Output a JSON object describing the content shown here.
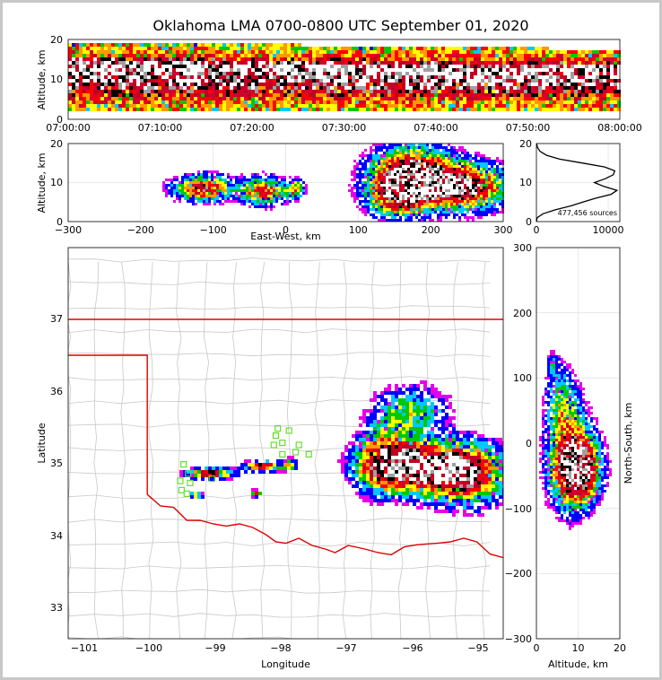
{
  "figure": {
    "title": "Oklahoma LMA 0700-0800 UTC September 01, 2020"
  },
  "colormap": [
    "#ffffff",
    "#e600e6",
    "#0000ff",
    "#00c8ff",
    "#00c800",
    "#ffff00",
    "#ff9900",
    "#ff0000",
    "#d00030",
    "#c00020",
    "#000000",
    "#a0a0a0",
    "#ffffff"
  ],
  "chart_data": [
    {
      "name": "time-altitude",
      "type": "heatmap",
      "ylabel": "Altitude, km",
      "ylim": [
        0,
        20
      ],
      "y_ticks": [
        "0",
        "10",
        "20"
      ],
      "x_ticks": [
        "07:00:00",
        "07:10:00",
        "07:20:00",
        "07:30:00",
        "07:40:00",
        "07:50:00",
        "08:00:00"
      ],
      "xlim": [
        "07:00:00",
        "08:00:00"
      ]
    },
    {
      "name": "east-west-altitude",
      "type": "heatmap",
      "xlabel": "East-West, km",
      "ylabel": "Altitude, km",
      "xlim": [
        -300,
        300
      ],
      "ylim": [
        0,
        20
      ],
      "x_ticks": [
        "−300",
        "−200",
        "−100",
        "0",
        "100",
        "200",
        "300"
      ],
      "y_ticks": [
        "0",
        "10",
        "20"
      ]
    },
    {
      "name": "altitude-histogram",
      "type": "line",
      "annotation": "477,456 sources",
      "xlim": [
        0,
        11500
      ],
      "ylim": [
        0,
        20
      ],
      "x_ticks": [
        "0",
        "10000"
      ],
      "y_ticks": [
        "0",
        "10",
        "20"
      ],
      "x": [
        0,
        100,
        900,
        2600,
        4700,
        6400,
        8200,
        10300,
        11100,
        9300,
        8000,
        9500,
        10600,
        10800,
        9400,
        6400,
        3200,
        1400,
        500,
        150,
        20
      ],
      "y": [
        0,
        1,
        2,
        3,
        4,
        5,
        6,
        7,
        8,
        9,
        10,
        11,
        12,
        13,
        14,
        15,
        16,
        17,
        18,
        19,
        20
      ]
    },
    {
      "name": "plan-view-map",
      "type": "heatmap",
      "xlabel": "Longitude",
      "ylabel": "Latitude",
      "xlim": [
        -101.2,
        -94.6
      ],
      "ylim": [
        32.55,
        38.0
      ],
      "x_ticks": [
        "−101",
        "−100",
        "−99",
        "−98",
        "−97",
        "−96",
        "−95"
      ],
      "y_ticks": [
        "33",
        "34",
        "35",
        "36",
        "37"
      ],
      "stations": [
        [
          -99.45,
          34.98
        ],
        [
          -99.38,
          34.85
        ],
        [
          -99.5,
          34.75
        ],
        [
          -99.35,
          34.72
        ],
        [
          -99.48,
          34.62
        ],
        [
          -99.4,
          34.57
        ],
        [
          -99.02,
          34.78
        ],
        [
          -98.02,
          35.48
        ],
        [
          -98.05,
          35.38
        ],
        [
          -97.85,
          35.45
        ],
        [
          -98.08,
          35.25
        ],
        [
          -97.95,
          35.28
        ],
        [
          -97.7,
          35.25
        ],
        [
          -97.75,
          35.15
        ],
        [
          -97.95,
          35.12
        ],
        [
          -97.55,
          35.12
        ]
      ],
      "storms": [
        {
          "lon": -95.95,
          "lat": 34.95,
          "intensity": "high"
        },
        {
          "lon": -99.05,
          "lat": 34.85,
          "intensity": "medium"
        },
        {
          "lon": -98.25,
          "lat": 34.95,
          "intensity": "medium"
        },
        {
          "lon": -97.85,
          "lat": 34.98,
          "intensity": "low"
        },
        {
          "lon": -98.35,
          "lat": 34.57,
          "intensity": "low"
        },
        {
          "lon": -99.25,
          "lat": 34.55,
          "intensity": "low"
        }
      ]
    },
    {
      "name": "north-south-altitude",
      "type": "heatmap",
      "xlabel": "Altitude, km",
      "ylabel": "North-South, km",
      "xlim": [
        0,
        20
      ],
      "ylim": [
        -300,
        300
      ],
      "x_ticks": [
        "0",
        "10",
        "20"
      ],
      "y_ticks": [
        "−300",
        "−200",
        "−100",
        "0",
        "100",
        "200",
        "300"
      ]
    }
  ]
}
